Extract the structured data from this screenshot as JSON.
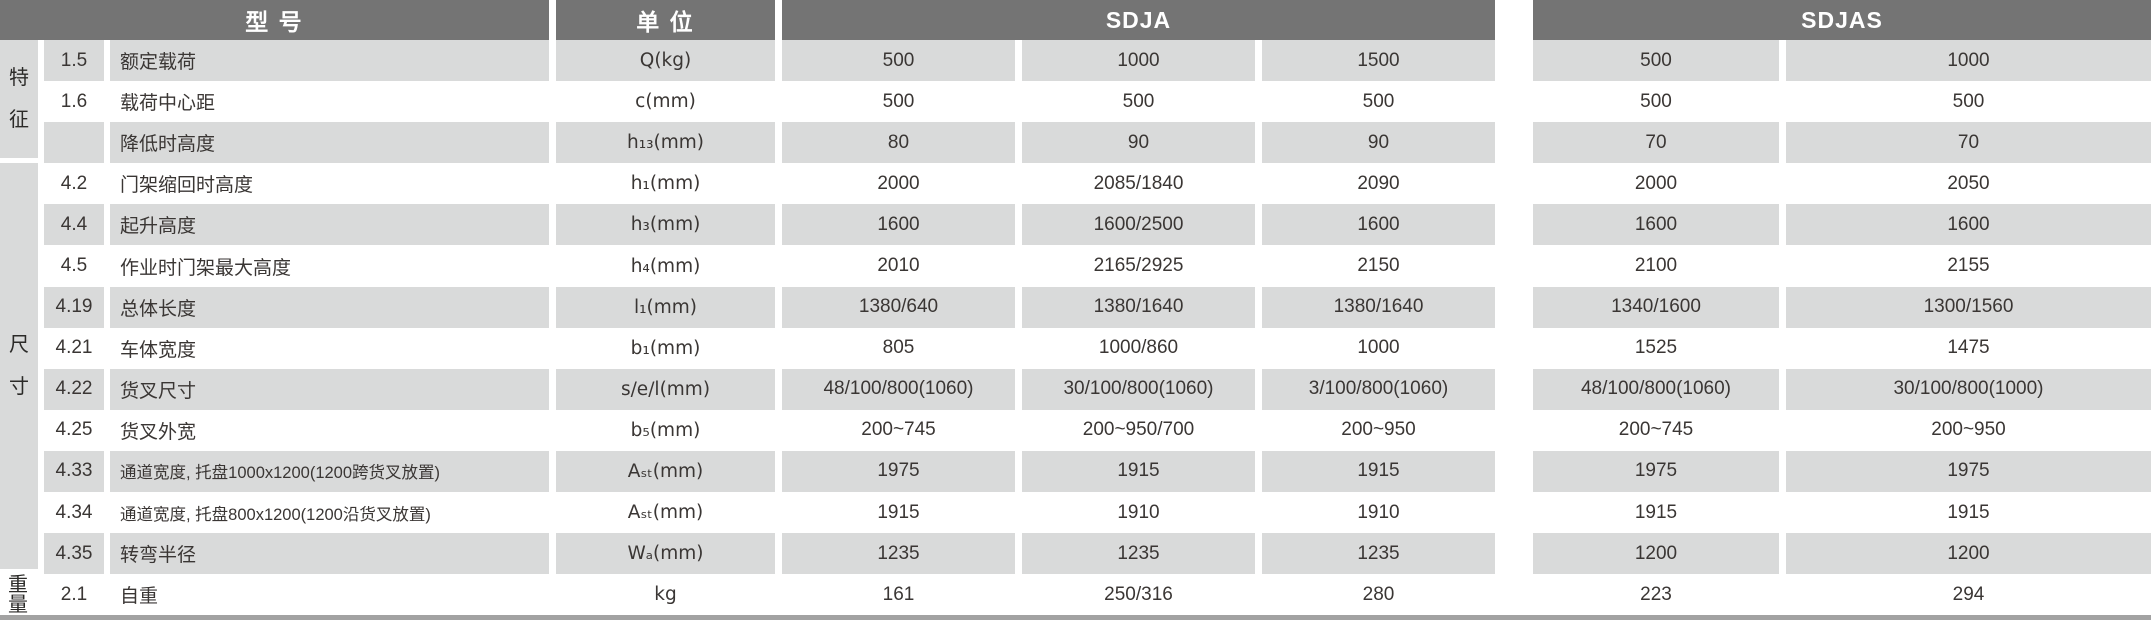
{
  "table": {
    "header": {
      "model_label": "型 号",
      "unit_label": "单 位",
      "groups": [
        {
          "name": "SDJA",
          "span": 3
        },
        {
          "name": "SDJAS",
          "span": 2
        }
      ]
    },
    "sections": [
      {
        "label": "特征",
        "orientation": "vertical",
        "row_span": 3
      },
      {
        "label": "尺寸",
        "orientation": "vertical",
        "row_span": 10
      },
      {
        "label": "重量",
        "orientation": "horizontal",
        "row_span": 1
      }
    ],
    "rows": [
      {
        "no": "1.5",
        "name": "额定载荷",
        "unit": "Q(kg)",
        "values": [
          "500",
          "1000",
          "1500",
          "500",
          "1000"
        ]
      },
      {
        "no": "1.6",
        "name": "载荷中心距",
        "unit": "c(mm)",
        "values": [
          "500",
          "500",
          "500",
          "500",
          "500"
        ]
      },
      {
        "no": "",
        "name": "降低时高度",
        "unit": "h₁₃(mm)",
        "values": [
          "80",
          "90",
          "90",
          "70",
          "70"
        ]
      },
      {
        "no": "4.2",
        "name": "门架缩回时高度",
        "unit": "h₁(mm)",
        "values": [
          "2000",
          "2085/1840",
          "2090",
          "2000",
          "2050"
        ]
      },
      {
        "no": "4.4",
        "name": "起升高度",
        "unit": "h₃(mm)",
        "values": [
          "1600",
          "1600/2500",
          "1600",
          "1600",
          "1600"
        ]
      },
      {
        "no": "4.5",
        "name": "作业时门架最大高度",
        "unit": "h₄(mm)",
        "values": [
          "2010",
          "2165/2925",
          "2150",
          "2100",
          "2155"
        ]
      },
      {
        "no": "4.19",
        "name": "总体长度",
        "unit": "l₁(mm)",
        "values": [
          "1380/640",
          "1380/1640",
          "1380/1640",
          "1340/1600",
          "1300/1560"
        ]
      },
      {
        "no": "4.21",
        "name": "车体宽度",
        "unit": "b₁(mm)",
        "values": [
          "805",
          "1000/860",
          "1000",
          "1525",
          "1475"
        ]
      },
      {
        "no": "4.22",
        "name": "货叉尺寸",
        "unit": "s/e/l(mm)",
        "values": [
          "48/100/800(1060)",
          "30/100/800(1060)",
          "3/100/800(1060)",
          "48/100/800(1060)",
          "30/100/800(1000)"
        ]
      },
      {
        "no": "4.25",
        "name": "货叉外宽",
        "unit": "b₅(mm)",
        "values": [
          "200~745",
          "200~950/700",
          "200~950",
          "200~745",
          "200~950"
        ]
      },
      {
        "no": "4.33",
        "name": "通道宽度, 托盘1000x1200(1200跨货叉放置)",
        "unit": "Aₛₜ(mm)",
        "values": [
          "1975",
          "1915",
          "1915",
          "1975",
          "1975"
        ]
      },
      {
        "no": "4.34",
        "name": "通道宽度, 托盘800x1200(1200沿货叉放置)",
        "unit": "Aₛₜ(mm)",
        "values": [
          "1915",
          "1910",
          "1910",
          "1915",
          "1915"
        ]
      },
      {
        "no": "4.35",
        "name": "转弯半径",
        "unit": "Wₐ(mm)",
        "values": [
          "1235",
          "1235",
          "1235",
          "1200",
          "1200"
        ]
      },
      {
        "no": "2.1",
        "name": "自重",
        "unit": "kg",
        "values": [
          "161",
          "250/316",
          "280",
          "223",
          "294"
        ]
      }
    ],
    "colors": {
      "header_bg": "#747474",
      "header_text": "#ffffff",
      "stripe_bg": "#d9dada",
      "body_text": "#3a3634",
      "bottom_strip": "#a2a2a2"
    }
  }
}
